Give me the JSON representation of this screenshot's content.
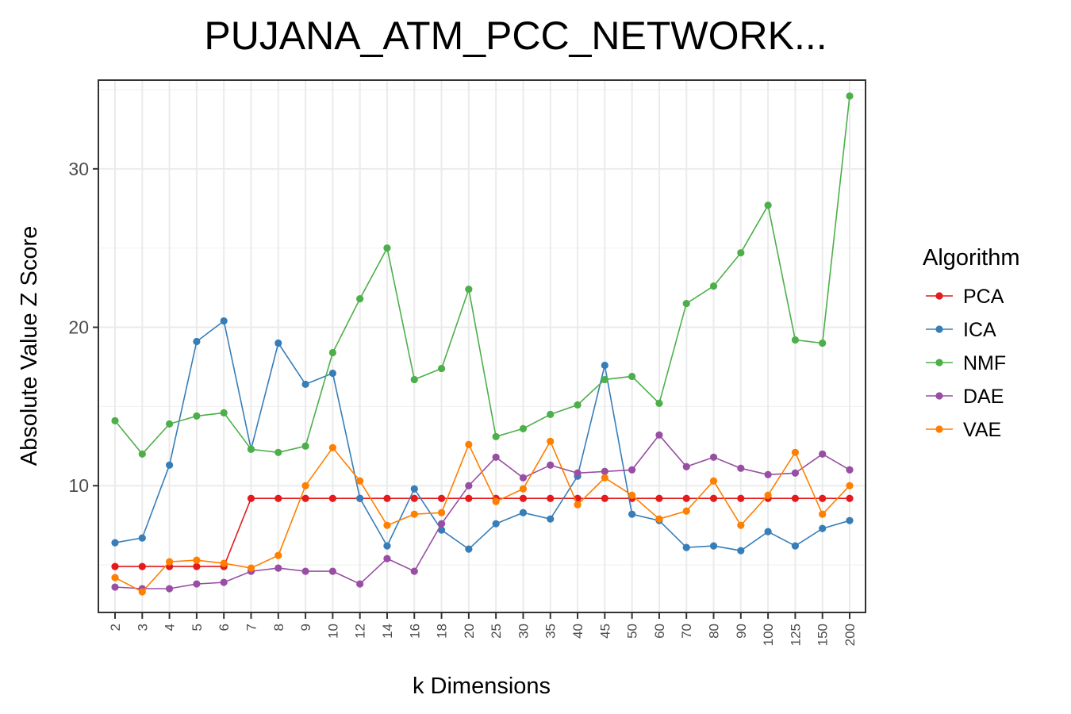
{
  "chart_data": {
    "type": "line",
    "title": "PUJANA_ATM_PCC_NETWORK... ",
    "xlabel": "k Dimensions",
    "ylabel": "Absolute Value Z Score",
    "categories": [
      "2",
      "3",
      "4",
      "5",
      "6",
      "7",
      "8",
      "9",
      "10",
      "12",
      "14",
      "16",
      "18",
      "20",
      "25",
      "30",
      "35",
      "40",
      "45",
      "50",
      "60",
      "70",
      "80",
      "90",
      "100",
      "125",
      "150",
      "200"
    ],
    "yticks": [
      10,
      20,
      30
    ],
    "ylim": [
      2.0,
      35.6
    ],
    "grid": true,
    "legend_title": "Algorithm",
    "legend_position": "right",
    "series": [
      {
        "name": "PCA",
        "color": "#e41a1c",
        "values": [
          4.9,
          4.9,
          4.9,
          4.9,
          4.9,
          9.2,
          9.2,
          9.2,
          9.2,
          9.2,
          9.2,
          9.2,
          9.2,
          9.2,
          9.2,
          9.2,
          9.2,
          9.2,
          9.2,
          9.2,
          9.2,
          9.2,
          9.2,
          9.2,
          9.2,
          9.2,
          9.2,
          9.2
        ]
      },
      {
        "name": "ICA",
        "color": "#377eb8",
        "values": [
          6.4,
          6.7,
          11.3,
          19.1,
          20.4,
          12.3,
          19.0,
          16.4,
          17.1,
          9.2,
          6.2,
          9.8,
          7.2,
          6.0,
          7.6,
          8.3,
          7.9,
          10.6,
          17.6,
          8.2,
          7.8,
          6.1,
          6.2,
          5.9,
          7.1,
          6.2,
          7.3,
          7.8
        ]
      },
      {
        "name": "NMF",
        "color": "#4daf4a",
        "values": [
          14.1,
          12.0,
          13.9,
          14.4,
          14.6,
          12.3,
          12.1,
          12.5,
          18.4,
          21.8,
          25.0,
          16.7,
          17.4,
          22.4,
          13.1,
          13.6,
          14.5,
          15.1,
          16.7,
          16.9,
          15.2,
          21.5,
          22.6,
          24.7,
          27.7,
          19.2,
          19.0,
          34.6
        ]
      },
      {
        "name": "DAE",
        "color": "#984ea3",
        "values": [
          3.6,
          3.5,
          3.5,
          3.8,
          3.9,
          4.6,
          4.8,
          4.6,
          4.6,
          3.8,
          5.4,
          4.6,
          7.6,
          10.0,
          11.8,
          10.5,
          11.3,
          10.8,
          10.9,
          11.0,
          13.2,
          11.2,
          11.8,
          11.1,
          10.7,
          10.8,
          12.0,
          11.0
        ]
      },
      {
        "name": "VAE",
        "color": "#ff7f00",
        "values": [
          4.2,
          3.3,
          5.2,
          5.3,
          5.1,
          4.8,
          5.6,
          10.0,
          12.4,
          10.3,
          7.5,
          8.2,
          8.3,
          12.6,
          9.0,
          9.8,
          12.8,
          8.8,
          10.5,
          9.4,
          7.9,
          8.4,
          10.3,
          7.5,
          9.4,
          12.1,
          8.2,
          10.0
        ]
      }
    ]
  }
}
